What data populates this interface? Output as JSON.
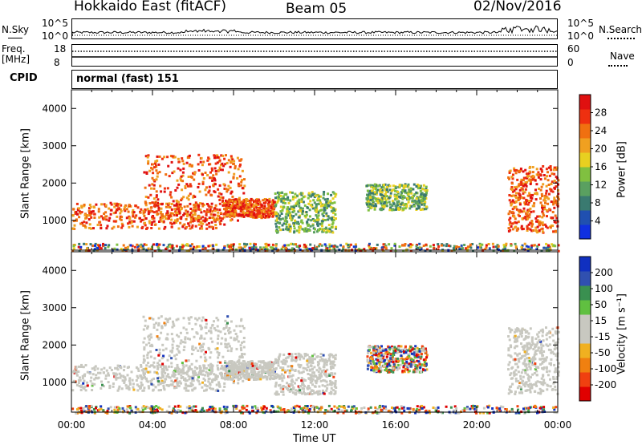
{
  "header": {
    "title": "Hokkaido East (fitACF)",
    "beam": "Beam 05",
    "date": "02/Nov/2016"
  },
  "noise_panel": {
    "left_label": "N.Sky",
    "right_label": "N.Search",
    "ticks_left": [
      "10^5",
      "10^0"
    ],
    "ticks_right": [
      "10^5",
      "10^0"
    ]
  },
  "freq_panel": {
    "left_label_1": "Freq.",
    "left_label_2": "[MHz]",
    "right_label": "Nave",
    "ticks_left": [
      "18",
      "8"
    ],
    "ticks_right": [
      "60",
      "0"
    ]
  },
  "cpid_panel": {
    "label": "CPID",
    "text": "normal (fast) 151"
  },
  "chart_data": [
    {
      "type": "heatmap",
      "title": "",
      "xlabel": "",
      "ylabel": "Slant Range [km]",
      "y_ticks": [
        "1000",
        "2000",
        "3000",
        "4000"
      ],
      "ylim": [
        200,
        4500
      ],
      "colorbar": {
        "label": "Power [dB]",
        "ticks": [
          "4",
          "8",
          "12",
          "16",
          "20",
          "24",
          "28"
        ],
        "range": [
          0,
          32
        ],
        "colors": [
          "#1030e0",
          "#2050b0",
          "#3a7a70",
          "#5aa060",
          "#80c040",
          "#e8d020",
          "#f0a020",
          "#f07010",
          "#ee3010",
          "#e01010"
        ]
      },
      "regions": [
        {
          "t": [
            0.0,
            7.5
          ],
          "range": [
            800,
            1500
          ],
          "level": "high"
        },
        {
          "t": [
            3.5,
            8.5
          ],
          "range": [
            1000,
            2800
          ],
          "level": "high"
        },
        {
          "t": [
            7.5,
            10.0
          ],
          "range": [
            1100,
            1600
          ],
          "level": "high"
        },
        {
          "t": [
            10.0,
            13.0
          ],
          "range": [
            700,
            1800
          ],
          "level": "medium"
        },
        {
          "t": [
            14.5,
            17.5
          ],
          "range": [
            1300,
            2000
          ],
          "level": "medium"
        },
        {
          "t": [
            21.5,
            24.0
          ],
          "range": [
            700,
            2500
          ],
          "level": "high"
        },
        {
          "t": [
            0.0,
            24.0
          ],
          "range": [
            200,
            400
          ],
          "level": "low"
        }
      ]
    },
    {
      "type": "heatmap",
      "title": "",
      "xlabel": "Time UT",
      "ylabel": "Slant Range [km]",
      "x_ticks": [
        "00:00",
        "04:00",
        "08:00",
        "12:00",
        "16:00",
        "20:00",
        "00:00"
      ],
      "y_ticks": [
        "1000",
        "2000",
        "3000",
        "4000"
      ],
      "ylim": [
        200,
        4500
      ],
      "colorbar": {
        "label": "Velocity [m s⁻¹]",
        "ticks": [
          "200",
          "100",
          "50",
          "15",
          "-15",
          "-50",
          "-100",
          "-200"
        ],
        "range": [
          -250,
          250
        ],
        "colors": [
          "#e00000",
          "#f04010",
          "#f08010",
          "#f0b020",
          "#c8c8c0",
          "#c8c8c0",
          "#60c040",
          "#3a9050",
          "#3050b0",
          "#1030c0"
        ]
      },
      "regions": [
        {
          "t": [
            0.0,
            7.5
          ],
          "range": [
            800,
            1500
          ],
          "level": "ground"
        },
        {
          "t": [
            3.5,
            8.5
          ],
          "range": [
            1000,
            2800
          ],
          "level": "ground"
        },
        {
          "t": [
            7.5,
            10.0
          ],
          "range": [
            1100,
            1600
          ],
          "level": "ground"
        },
        {
          "t": [
            10.0,
            13.0
          ],
          "range": [
            700,
            1800
          ],
          "level": "ground"
        },
        {
          "t": [
            14.5,
            17.5
          ],
          "range": [
            1300,
            2000
          ],
          "level": "mixed"
        },
        {
          "t": [
            21.5,
            24.0
          ],
          "range": [
            700,
            2500
          ],
          "level": "ground"
        },
        {
          "t": [
            0.0,
            24.0
          ],
          "range": [
            200,
            400
          ],
          "level": "mixed"
        }
      ]
    }
  ]
}
